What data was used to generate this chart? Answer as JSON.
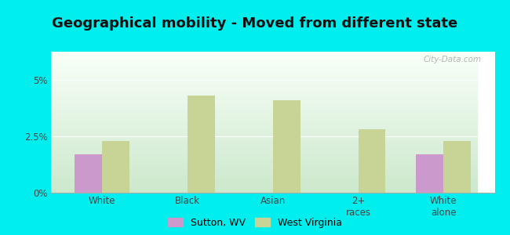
{
  "title": "Geographical mobility - Moved from different state",
  "categories": [
    "White",
    "Black",
    "Asian",
    "2+\nraces",
    "White\nalone"
  ],
  "sutton_values": [
    1.7,
    0.0,
    0.0,
    0.0,
    1.7
  ],
  "wv_values": [
    2.3,
    4.3,
    4.1,
    2.8,
    2.3
  ],
  "sutton_color": "#cc99cc",
  "wv_color": "#c8d496",
  "background_outer": "#00eeee",
  "ylim": [
    0,
    6.25
  ],
  "ytick_vals": [
    0,
    2.5,
    5.0
  ],
  "ytick_labels": [
    "0%",
    "2.5%",
    "5%"
  ],
  "legend_sutton": "Sutton, WV",
  "legend_wv": "West Virginia",
  "bar_width": 0.32,
  "title_fontsize": 13,
  "watermark": "City-Data.com"
}
